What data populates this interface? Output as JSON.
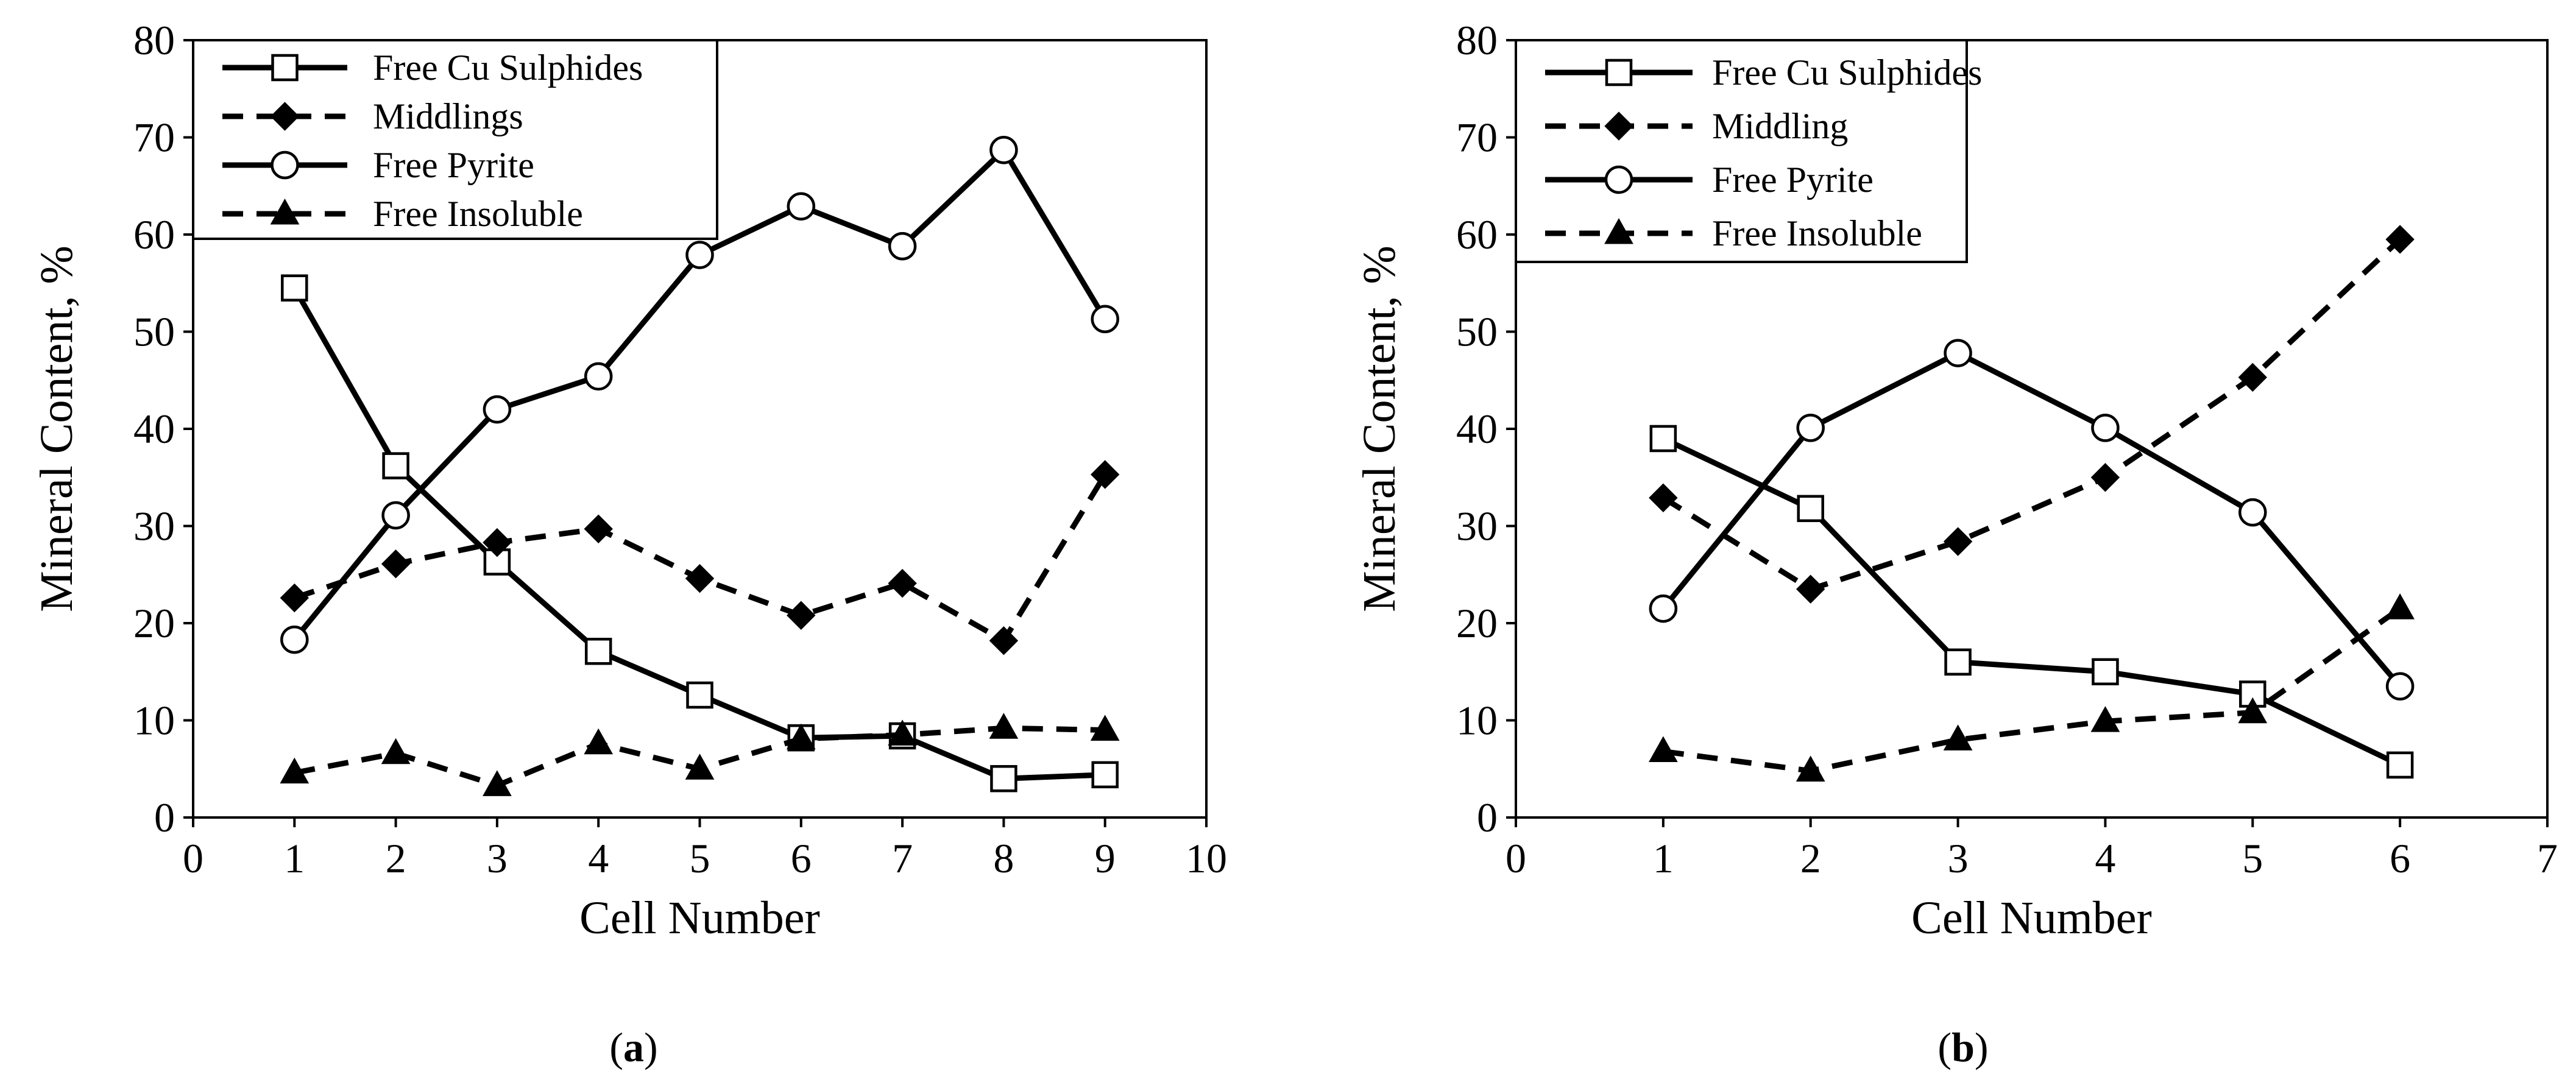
{
  "figure": {
    "caption_a": {
      "open": "(",
      "letter": "a",
      "close": ")"
    },
    "caption_b": {
      "open": "(",
      "letter": "b",
      "close": ")"
    }
  },
  "chart_data": [
    {
      "id": "a",
      "type": "line",
      "title": "",
      "xlabel": "Cell Number",
      "ylabel": "Mineral Content, %",
      "xlim": [
        0,
        10
      ],
      "ylim": [
        0,
        80
      ],
      "xticks": [
        0,
        1,
        2,
        3,
        4,
        5,
        6,
        7,
        8,
        9,
        10
      ],
      "yticks": [
        0,
        10,
        20,
        30,
        40,
        50,
        60,
        70,
        80
      ],
      "grid": false,
      "legend_position": "top-left",
      "x": [
        1,
        2,
        3,
        4,
        5,
        6,
        7,
        8,
        9
      ],
      "series": [
        {
          "name": "Free Cu Sulphides",
          "line": "solid",
          "marker": "square-open",
          "values": [
            54.5,
            36.2,
            26.3,
            17.1,
            12.6,
            8.2,
            8.4,
            4.0,
            4.4
          ]
        },
        {
          "name": "Middlings",
          "line": "dashed",
          "marker": "diamond-filled",
          "values": [
            22.6,
            26.1,
            28.3,
            29.7,
            24.6,
            20.8,
            24.1,
            18.2,
            35.3
          ]
        },
        {
          "name": "Free Pyrite",
          "line": "solid",
          "marker": "circle-open",
          "values": [
            18.3,
            31.1,
            42.0,
            45.4,
            57.9,
            62.9,
            58.8,
            68.7,
            51.3
          ]
        },
        {
          "name": "Free Insoluble",
          "line": "dashed",
          "marker": "triangle-filled",
          "values": [
            4.6,
            6.6,
            3.3,
            7.6,
            5.0,
            8.1,
            8.5,
            9.2,
            9.0
          ]
        }
      ]
    },
    {
      "id": "b",
      "type": "line",
      "title": "",
      "xlabel": "Cell Number",
      "ylabel": "Mineral Content, %",
      "xlim": [
        0,
        7
      ],
      "ylim": [
        0,
        80
      ],
      "xticks": [
        0,
        1,
        2,
        3,
        4,
        5,
        6,
        7
      ],
      "yticks": [
        0,
        10,
        20,
        30,
        40,
        50,
        60,
        70,
        80
      ],
      "grid": false,
      "legend_position": "top-left",
      "x": [
        1,
        2,
        3,
        4,
        5,
        6
      ],
      "series": [
        {
          "name": "Free Cu Sulphides",
          "line": "solid",
          "marker": "square-open",
          "values": [
            39.0,
            31.8,
            16.0,
            15.0,
            12.7,
            5.4
          ]
        },
        {
          "name": "Middling",
          "line": "dashed",
          "marker": "diamond-filled",
          "values": [
            32.9,
            23.5,
            28.4,
            35.0,
            45.3,
            59.5
          ]
        },
        {
          "name": "Free Pyrite",
          "line": "solid",
          "marker": "circle-open",
          "values": [
            21.5,
            40.1,
            47.8,
            40.1,
            31.4,
            13.5
          ]
        },
        {
          "name": "Free Insoluble",
          "line": "dashed",
          "marker": "triangle-filled",
          "values": [
            6.8,
            4.8,
            8.0,
            9.9,
            10.8,
            21.5
          ]
        }
      ]
    }
  ]
}
